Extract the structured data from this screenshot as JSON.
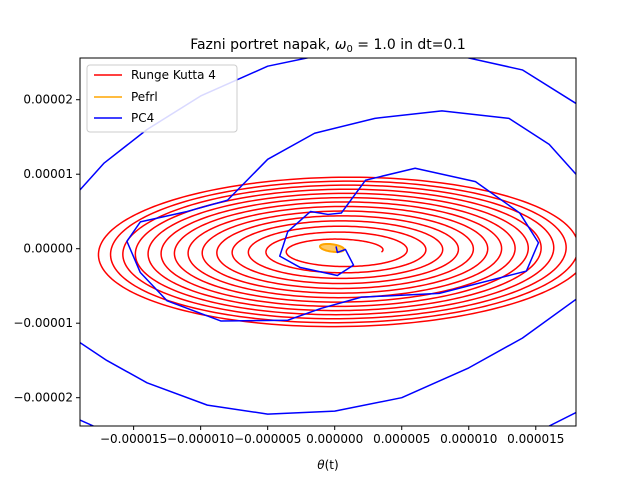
{
  "chart_data": {
    "type": "line",
    "title": "Fazni portret napak, ω₀ = 1.0 in dt=0.1",
    "title_parts": {
      "prefix": "Fazni portret napak, ",
      "omega": "ω",
      "omega_sub": "0",
      "suffix": " = 1.0 in dt=0.1"
    },
    "xlabel": "θ(t)",
    "xlabel_parts": {
      "var": "θ",
      "arg": "(t)"
    },
    "ylabel": "",
    "xlim": [
      -1.9e-05,
      1.8e-05
    ],
    "ylim": [
      -2.38e-05,
      2.56e-05
    ],
    "grid": false,
    "legend_position": "top-left",
    "x_ticks": [
      {
        "value": -1.5e-05,
        "label": "−0.000015"
      },
      {
        "value": -1e-05,
        "label": "−0.000010"
      },
      {
        "value": -5e-06,
        "label": "−0.000005"
      },
      {
        "value": 0,
        "label": "0.000000"
      },
      {
        "value": 5e-06,
        "label": "0.000005"
      },
      {
        "value": 1e-05,
        "label": "0.000010"
      },
      {
        "value": 1.5e-05,
        "label": "0.000015"
      }
    ],
    "y_ticks": [
      {
        "value": -2e-05,
        "label": "−0.00002"
      },
      {
        "value": -1e-05,
        "label": "−0.00001"
      },
      {
        "value": 0,
        "label": "0.00000"
      },
      {
        "value": 1e-05,
        "label": "0.00001"
      },
      {
        "value": 2e-05,
        "label": "0.00002"
      }
    ],
    "series": [
      {
        "name": "Runge Kutta 4",
        "color": "#ff0000",
        "kind": "growing elliptical spiral",
        "center": [
          5e-07,
          -3e-07
        ],
        "semi_axis_x_range": [
          3e-06,
          1.85e-05
        ],
        "semi_axis_y_range": [
          1.2e-06,
          1.03e-05
        ],
        "rotation_deg": -6,
        "turns": 14
      },
      {
        "name": "Pefrl",
        "color": "#ffa500",
        "kind": "small closed loop",
        "center": [
          -2e-07,
          1e-07
        ],
        "semi_axis_x": 9e-07,
        "semi_axis_y": 5e-07
      },
      {
        "name": "PC4",
        "color": "#0000ff",
        "kind": "irregular growing spiral",
        "points": [
          [
            1e-07,
            3e-07
          ],
          [
            2e-07,
            -5e-07
          ],
          [
            8e-07,
            -1e-07
          ],
          [
            1.4e-06,
            -2.2e-06
          ],
          [
            2e-07,
            -3.6e-06
          ],
          [
            -2.6e-06,
            -2.5e-06
          ],
          [
            -4.1e-06,
            -1e-06
          ],
          [
            -3.5e-06,
            2.3e-06
          ],
          [
            -1.8e-06,
            5e-06
          ],
          [
            -5e-07,
            4.6e-06
          ],
          [
            5e-07,
            4.8e-06
          ],
          [
            2.3e-06,
            9.2e-06
          ],
          [
            6e-06,
            1.08e-05
          ],
          [
            1.05e-05,
            9e-06
          ],
          [
            1.38e-05,
            4.8e-06
          ],
          [
            1.52e-05,
            8e-07
          ],
          [
            1.43e-05,
            -3e-06
          ],
          [
            7.8e-06,
            -6e-06
          ],
          [
            2e-06,
            -6.5e-06
          ],
          [
            -1e-06,
            -8e-06
          ],
          [
            -3.5e-06,
            -9.6e-06
          ],
          [
            -8.5e-06,
            -9.7e-06
          ],
          [
            -1.25e-05,
            -7e-06
          ],
          [
            -1.45e-05,
            -3.2e-06
          ],
          [
            -1.55e-05,
            1e-06
          ],
          [
            -1.45e-05,
            3.6e-06
          ],
          [
            -1.1e-05,
            5e-06
          ],
          [
            -8e-06,
            6.5e-06
          ],
          [
            -5e-06,
            1.2e-05
          ],
          [
            -1.5e-06,
            1.55e-05
          ],
          [
            3e-06,
            1.75e-05
          ],
          [
            8e-06,
            1.85e-05
          ],
          [
            1.3e-05,
            1.75e-05
          ],
          [
            1.6e-05,
            1.4e-05
          ],
          [
            1.8e-05,
            1e-05
          ]
        ],
        "outer_arcs": [
          [
            [
              -1.9e-05,
              7.9e-06
            ],
            [
              -1.72e-05,
              1.15e-05
            ],
            [
              -1.4e-05,
              1.6e-05
            ],
            [
              -1e-05,
              2.05e-05
            ],
            [
              -5e-06,
              2.45e-05
            ],
            [
              -1e-06,
              2.6e-05
            ]
          ],
          [
            [
              9e-06,
              2.6e-05
            ],
            [
              1.4e-05,
              2.4e-05
            ],
            [
              1.8e-05,
              1.95e-05
            ]
          ],
          [
            [
              -1.9e-05,
              -1.26e-05
            ],
            [
              -1.7e-05,
              -1.5e-05
            ],
            [
              -1.4e-05,
              -1.8e-05
            ],
            [
              -9.5e-06,
              -2.1e-05
            ],
            [
              -5e-06,
              -2.22e-05
            ],
            [
              0.0,
              -2.18e-05
            ],
            [
              5e-06,
              -2e-05
            ],
            [
              1e-05,
              -1.6e-05
            ],
            [
              1.4e-05,
              -1.2e-05
            ],
            [
              1.8e-05,
              -6.8e-06
            ]
          ],
          [
            [
              -1.9e-05,
              -2.3e-05
            ],
            [
              -1.8e-05,
              -2.38e-05
            ]
          ],
          [
            [
              1.6e-05,
              -2.38e-05
            ],
            [
              1.8e-05,
              -2.2e-05
            ]
          ]
        ]
      }
    ]
  }
}
